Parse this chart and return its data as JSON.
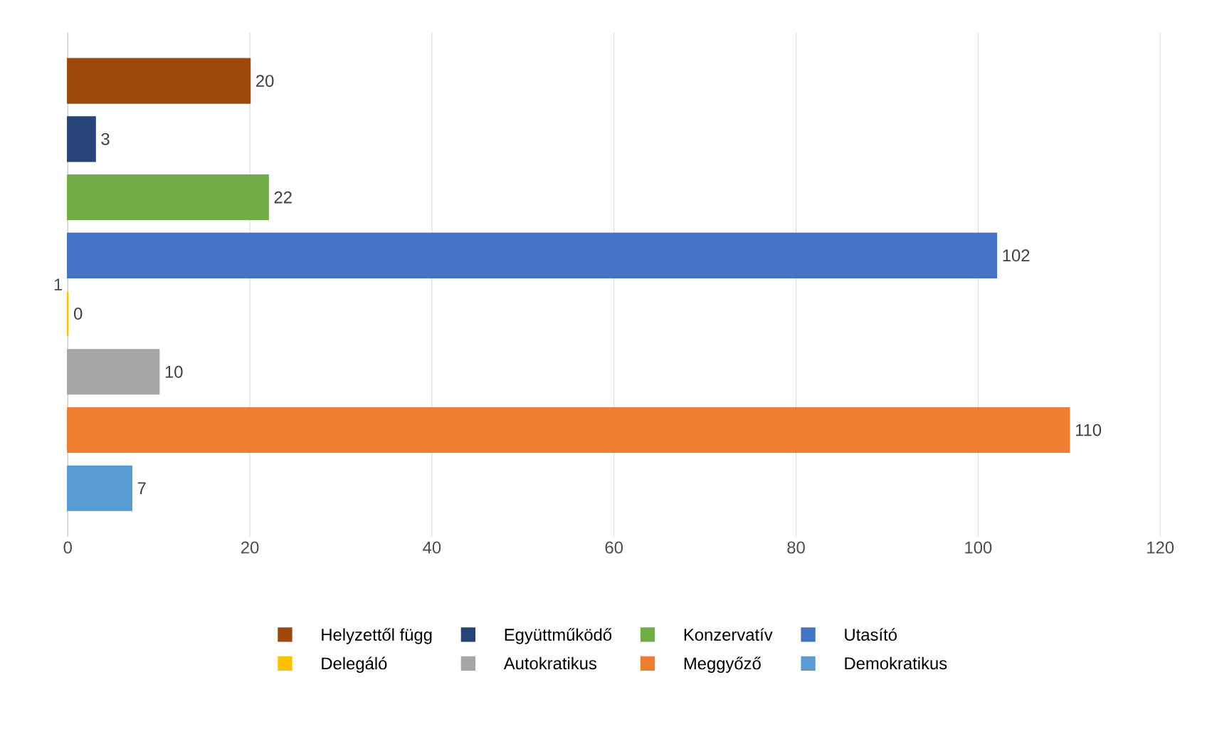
{
  "chart_data": {
    "type": "bar",
    "orientation": "horizontal",
    "categories": [
      "1"
    ],
    "series": [
      {
        "name": "Helyzettől függ",
        "color": "#9e480e",
        "values": [
          20
        ]
      },
      {
        "name": "Együttműködő",
        "color": "#264478",
        "values": [
          3
        ]
      },
      {
        "name": "Konzervatív",
        "color": "#70ad47",
        "values": [
          22
        ]
      },
      {
        "name": "Utasító",
        "color": "#4472c4",
        "values": [
          102
        ]
      },
      {
        "name": "Delegáló",
        "color": "#ffc000",
        "values": [
          0
        ]
      },
      {
        "name": "Autokratikus",
        "color": "#a5a5a5",
        "values": [
          10
        ]
      },
      {
        "name": "Meggyőző",
        "color": "#ed7d31",
        "values": [
          110
        ]
      },
      {
        "name": "Demokratikus",
        "color": "#5b9bd5",
        "values": [
          7
        ]
      }
    ],
    "xlim": [
      0,
      120
    ],
    "xticks": [
      0,
      20,
      40,
      60,
      80,
      100,
      120
    ],
    "grid": "x",
    "legend": "bottom",
    "data_labels": true
  }
}
